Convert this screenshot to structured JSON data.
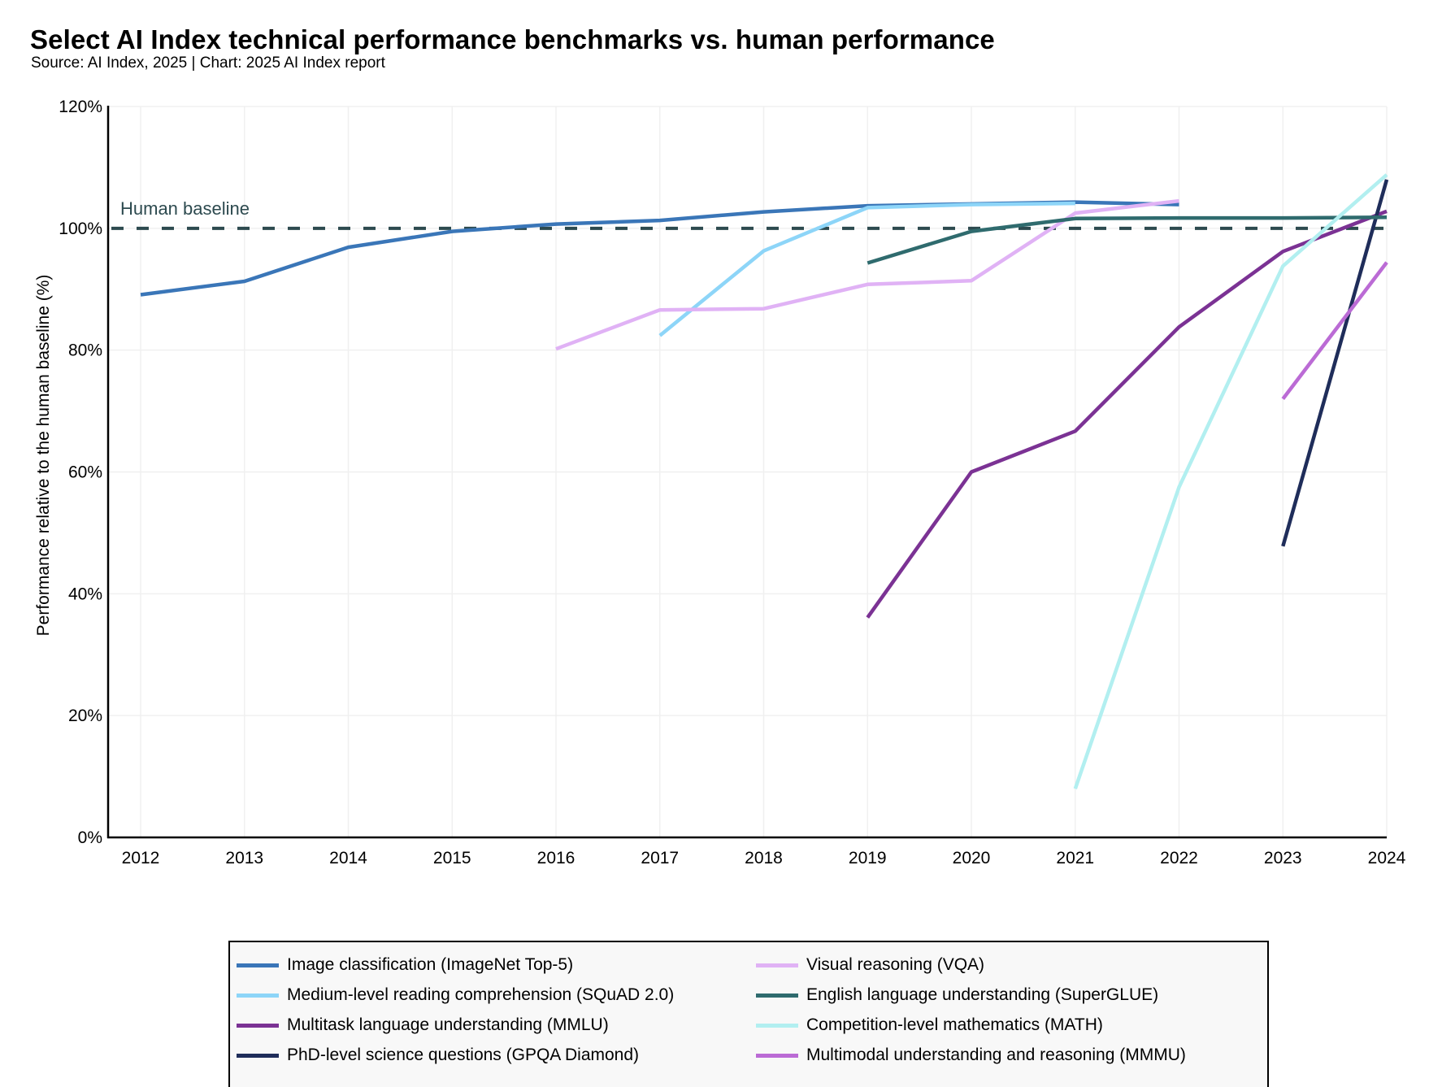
{
  "header": {
    "title": "Select AI Index technical performance benchmarks vs. human performance",
    "subtitle": "Source: AI Index, 2025 | Chart: 2025 AI Index report"
  },
  "chart_data": {
    "type": "line",
    "title": "Select AI Index technical performance benchmarks vs. human performance",
    "subtitle": "Source: AI Index, 2025 | Chart: 2025 AI Index report",
    "xlabel": "",
    "ylabel": "Performance relative to the human baseline (%)",
    "x": [
      2012,
      2013,
      2014,
      2015,
      2016,
      2017,
      2018,
      2019,
      2020,
      2021,
      2022,
      2023,
      2024
    ],
    "x_tick_labels": [
      "2012",
      "2013",
      "2014",
      "2015",
      "2016",
      "2017",
      "2018",
      "2019",
      "2020",
      "2021",
      "2022",
      "2023",
      "2024"
    ],
    "ylim": [
      0,
      120
    ],
    "y_ticks": [
      0,
      20,
      40,
      60,
      80,
      100,
      120
    ],
    "y_tick_labels": [
      "0%",
      "20%",
      "40%",
      "60%",
      "80%",
      "100%",
      "120%"
    ],
    "grid": true,
    "legend_position": "bottom",
    "reference_line": {
      "label": "Human baseline",
      "value": 100,
      "style": "dashed",
      "color": "#2d4a4f"
    },
    "series": [
      {
        "name": "Image classification (ImageNet Top-5)",
        "color": "#3a76b8",
        "x": [
          2012,
          2013,
          2014,
          2015,
          2016,
          2017,
          2018,
          2019,
          2020,
          2021,
          2022
        ],
        "values": [
          89.1,
          91.3,
          96.9,
          99.5,
          100.7,
          101.3,
          102.7,
          103.7,
          104.0,
          104.3,
          103.9
        ]
      },
      {
        "name": "Medium-level reading comprehension (SQuAD 2.0)",
        "color": "#8dd5f8",
        "x": [
          2017,
          2018,
          2019,
          2020,
          2021
        ],
        "values": [
          82.4,
          96.3,
          103.4,
          103.9,
          104.1
        ]
      },
      {
        "name": "Multitask language understanding (MMLU)",
        "color": "#7b3294",
        "x": [
          2019,
          2020,
          2021,
          2022,
          2023,
          2024
        ],
        "values": [
          36.1,
          60.0,
          66.7,
          83.8,
          96.2,
          102.8
        ]
      },
      {
        "name": "PhD-level science questions (GPQA Diamond)",
        "color": "#1f2d5a",
        "x": [
          2023,
          2024
        ],
        "values": [
          47.8,
          108.0
        ]
      },
      {
        "name": "Visual reasoning (VQA)",
        "color": "#e0b2f5",
        "x": [
          2016,
          2017,
          2018,
          2019,
          2020,
          2021,
          2022
        ],
        "values": [
          80.2,
          86.6,
          86.8,
          90.8,
          91.4,
          102.5,
          104.5
        ]
      },
      {
        "name": "English language understanding (SuperGLUE)",
        "color": "#2f6b6e",
        "x": [
          2019,
          2020,
          2021,
          2022,
          2023,
          2024
        ],
        "values": [
          94.3,
          99.5,
          101.6,
          101.7,
          101.7,
          101.8
        ]
      },
      {
        "name": "Competition-level mathematics (MATH)",
        "color": "#b2eff0",
        "x": [
          2021,
          2022,
          2023,
          2024
        ],
        "values": [
          8.0,
          57.5,
          93.8,
          108.8
        ]
      },
      {
        "name": "Multimodal understanding and reasoning (MMMU)",
        "color": "#bb6bd5",
        "x": [
          2023,
          2024
        ],
        "values": [
          72.0,
          94.4
        ]
      }
    ]
  },
  "legend": {
    "items": [
      {
        "label": "Image classification (ImageNet Top-5)",
        "color": "#3a76b8"
      },
      {
        "label": "Medium-level reading comprehension (SQuAD 2.0)",
        "color": "#8dd5f8"
      },
      {
        "label": "Multitask language understanding (MMLU)",
        "color": "#7b3294"
      },
      {
        "label": "PhD-level science questions (GPQA Diamond)",
        "color": "#1f2d5a"
      },
      {
        "label": "Visual reasoning (VQA)",
        "color": "#e0b2f5"
      },
      {
        "label": "English language understanding (SuperGLUE)",
        "color": "#2f6b6e"
      },
      {
        "label": "Competition-level mathematics (MATH)",
        "color": "#b2eff0"
      },
      {
        "label": "Multimodal understanding and reasoning (MMMU)",
        "color": "#bb6bd5"
      }
    ]
  }
}
